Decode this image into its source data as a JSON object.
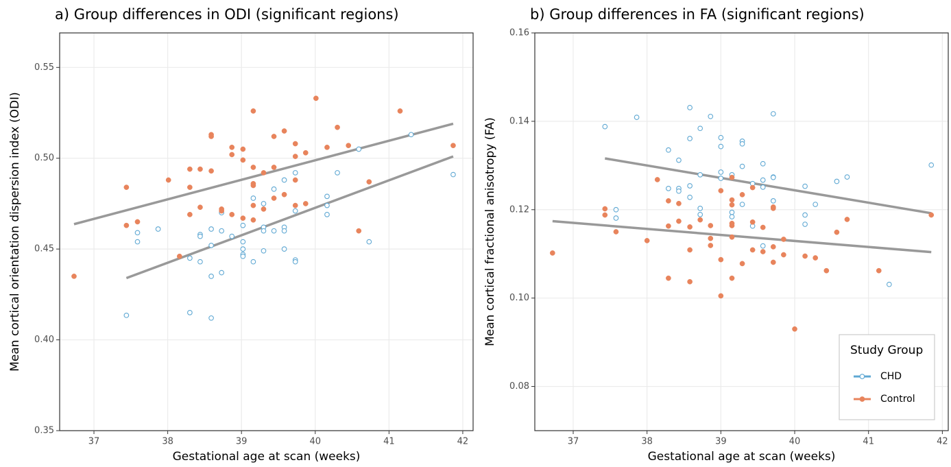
{
  "chart_data": [
    {
      "type": "scatter",
      "title": "a) Group differences in ODI (significant regions)",
      "x_label": "Gestational age at scan (weeks)",
      "y_label": "Mean cortical orientation dispersion index (ODI)",
      "xlim": [
        36.535,
        42.14
      ],
      "ylim": [
        0.35,
        0.569
      ],
      "grid": true,
      "xticks": [
        37,
        38,
        39,
        40,
        41,
        42
      ],
      "yticks": [
        0.35,
        {
          "value": 0.4,
          "label": "0.40"
        },
        0.45,
        {
          "value": 0.5,
          "label": "0.50"
        },
        0.55
      ],
      "series": [
        {
          "color": "#5fa8d3",
          "marker": "open",
          "x": [
            37.44,
            37.59,
            37.59,
            37.87,
            38.3,
            38.3,
            38.44,
            38.44,
            38.44,
            38.59,
            38.59,
            38.59,
            38.59,
            38.73,
            38.73,
            38.73,
            38.87,
            39.02,
            39.02,
            39.02,
            39.02,
            39.02,
            39.16,
            39.16,
            39.3,
            39.3,
            39.3,
            39.3,
            39.44,
            39.44,
            39.58,
            39.58,
            39.58,
            39.58,
            39.73,
            39.73,
            39.73,
            39.73,
            40.16,
            40.16,
            40.16,
            40.3,
            40.59,
            40.73,
            41.3,
            41.87
          ],
          "values": [
            0.4135,
            0.459,
            0.454,
            0.461,
            0.415,
            0.445,
            0.458,
            0.457,
            0.443,
            0.461,
            0.452,
            0.435,
            0.412,
            0.47,
            0.46,
            0.437,
            0.457,
            0.463,
            0.454,
            0.45,
            0.447,
            0.446,
            0.478,
            0.443,
            0.475,
            0.462,
            0.46,
            0.449,
            0.483,
            0.46,
            0.488,
            0.462,
            0.46,
            0.45,
            0.492,
            0.471,
            0.444,
            0.443,
            0.479,
            0.474,
            0.469,
            0.492,
            0.505,
            0.454,
            0.513,
            0.491
          ],
          "fit": {
            "color": "#999999",
            "x": [
              37.44,
              41.87
            ],
            "values": [
              0.434,
              0.501
            ]
          }
        },
        {
          "color": "#e8845c",
          "marker": "filled",
          "x": [
            36.73,
            37.44,
            37.44,
            37.59,
            38.01,
            38.16,
            38.3,
            38.3,
            38.3,
            38.44,
            38.44,
            38.59,
            38.59,
            38.59,
            38.73,
            38.73,
            38.87,
            38.87,
            38.87,
            39.02,
            39.02,
            39.02,
            39.16,
            39.16,
            39.16,
            39.16,
            39.16,
            39.16,
            39.3,
            39.3,
            39.44,
            39.44,
            39.44,
            39.58,
            39.58,
            39.73,
            39.73,
            39.73,
            39.73,
            39.87,
            39.87,
            40.01,
            40.16,
            40.3,
            40.45,
            40.59,
            40.73,
            41.15,
            41.87
          ],
          "values": [
            0.435,
            0.484,
            0.463,
            0.465,
            0.488,
            0.446,
            0.494,
            0.484,
            0.469,
            0.494,
            0.473,
            0.513,
            0.512,
            0.493,
            0.472,
            0.471,
            0.506,
            0.502,
            0.469,
            0.505,
            0.499,
            0.467,
            0.526,
            0.495,
            0.486,
            0.485,
            0.474,
            0.466,
            0.492,
            0.472,
            0.512,
            0.495,
            0.478,
            0.515,
            0.48,
            0.508,
            0.501,
            0.488,
            0.474,
            0.503,
            0.475,
            0.533,
            0.506,
            0.517,
            0.507,
            0.46,
            0.487,
            0.526,
            0.507
          ],
          "fit": {
            "color": "#999999",
            "x": [
              36.73,
              41.87
            ],
            "values": [
              0.4637,
              0.519
            ]
          }
        }
      ]
    },
    {
      "type": "scatter",
      "title": "b) Group differences in FA (significant regions)",
      "x_label": "Gestational age at scan (weeks)",
      "y_label": "Mean cortical fractional anisotropy (FA)",
      "xlim": [
        36.48,
        42.08
      ],
      "ylim": [
        0.07,
        0.16
      ],
      "grid": true,
      "xticks": [
        37,
        38,
        39,
        40,
        41,
        42
      ],
      "yticks": [
        0.08,
        {
          "value": 0.1,
          "label": "0.10"
        },
        0.12,
        0.14,
        0.16
      ],
      "legend": {
        "title": "Study Group",
        "position": "bottom-right"
      },
      "series": [
        {
          "name": "CHD",
          "color": "#5fa8d3",
          "marker": "open",
          "x": [
            37.43,
            37.58,
            37.58,
            37.86,
            38.29,
            38.29,
            38.43,
            38.43,
            38.43,
            38.58,
            38.58,
            38.58,
            38.58,
            38.72,
            38.72,
            38.72,
            38.72,
            38.86,
            39.0,
            39.0,
            39.0,
            39.0,
            39.15,
            39.15,
            39.15,
            39.29,
            39.29,
            39.29,
            39.29,
            39.43,
            39.43,
            39.57,
            39.57,
            39.57,
            39.57,
            39.71,
            39.71,
            39.71,
            39.71,
            39.71,
            40.14,
            40.14,
            40.14,
            40.28,
            40.57,
            40.71,
            41.28,
            41.85
          ],
          "values": [
            0.1388,
            0.12,
            0.1181,
            0.1409,
            0.1335,
            0.1248,
            0.1312,
            0.1248,
            0.1242,
            0.1431,
            0.1361,
            0.1254,
            0.1228,
            0.1384,
            0.1279,
            0.1203,
            0.1189,
            0.1411,
            0.1363,
            0.1343,
            0.1285,
            0.1271,
            0.1279,
            0.1194,
            0.1184,
            0.1355,
            0.1349,
            0.1298,
            0.1212,
            0.1259,
            0.1163,
            0.1304,
            0.1267,
            0.1251,
            0.1118,
            0.1417,
            0.1274,
            0.1273,
            0.122,
            0.1205,
            0.1253,
            0.1188,
            0.1167,
            0.1212,
            0.1264,
            0.1274,
            0.1031,
            0.1301
          ],
          "fit": {
            "color": "#999999",
            "x": [
              37.43,
              41.85
            ],
            "values": [
              0.1316,
              0.1192
            ]
          }
        },
        {
          "name": "Control",
          "color": "#e8845c",
          "marker": "filled",
          "x": [
            36.72,
            37.43,
            37.43,
            37.58,
            38.0,
            38.14,
            38.29,
            38.29,
            38.29,
            38.43,
            38.43,
            38.58,
            38.58,
            38.58,
            38.72,
            38.86,
            38.86,
            38.86,
            39.0,
            39.0,
            39.0,
            39.15,
            39.15,
            39.15,
            39.15,
            39.15,
            39.15,
            39.15,
            39.29,
            39.29,
            39.43,
            39.43,
            39.43,
            39.57,
            39.57,
            39.71,
            39.71,
            39.71,
            39.71,
            39.85,
            39.85,
            40.0,
            40.14,
            40.28,
            40.43,
            40.57,
            40.71,
            41.14,
            41.85
          ],
          "values": [
            0.1102,
            0.1202,
            0.1188,
            0.115,
            0.113,
            0.1268,
            0.122,
            0.1163,
            0.1045,
            0.1214,
            0.1174,
            0.1161,
            0.1109,
            0.1037,
            0.1177,
            0.1164,
            0.1135,
            0.1119,
            0.1243,
            0.1087,
            0.1005,
            0.1273,
            0.1222,
            0.1211,
            0.1169,
            0.1164,
            0.1138,
            0.1045,
            0.1234,
            0.1078,
            0.125,
            0.1172,
            0.1109,
            0.116,
            0.1105,
            0.1206,
            0.1203,
            0.1116,
            0.1081,
            0.1133,
            0.1098,
            0.093,
            0.1095,
            0.1091,
            0.1062,
            0.1149,
            0.1178,
            0.1062,
            0.1188
          ],
          "fit": {
            "color": "#999999",
            "x": [
              36.72,
              41.85
            ],
            "values": [
              0.1174,
              0.1104
            ]
          }
        }
      ]
    }
  ]
}
